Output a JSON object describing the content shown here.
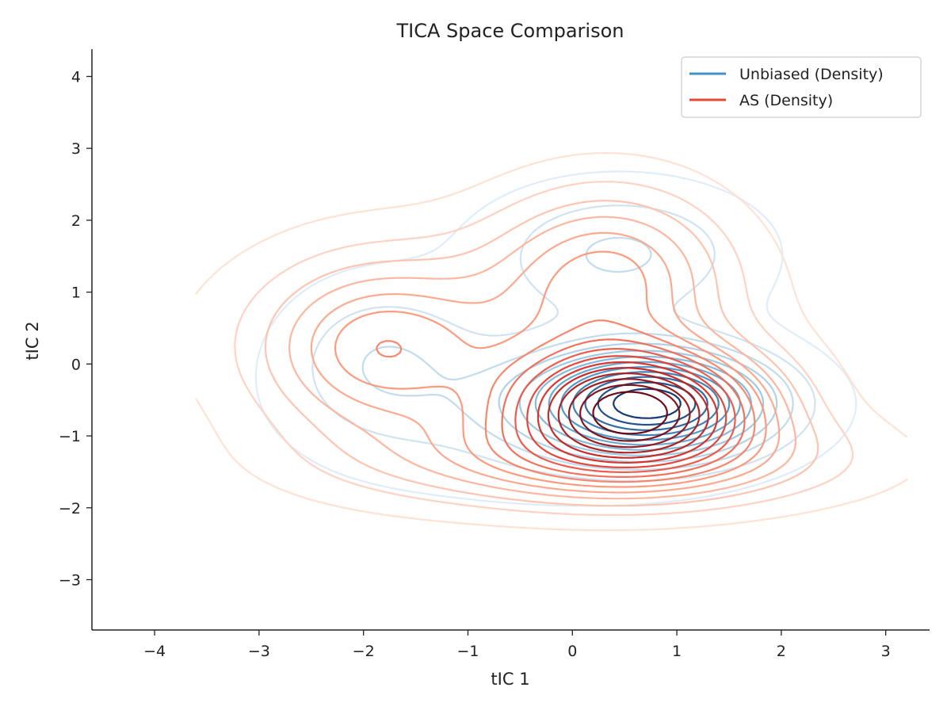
{
  "chart_data": {
    "type": "contour",
    "title": "TICA Space Comparison",
    "xlabel": "tIC 1",
    "ylabel": "tIC 2",
    "xlim": [
      -4.6,
      3.42
    ],
    "ylim": [
      -3.7,
      4.38
    ],
    "xticks": [
      -4,
      -3,
      -2,
      -1,
      0,
      1,
      2,
      3
    ],
    "yticks": [
      -3,
      -2,
      -1,
      0,
      1,
      2,
      3,
      4
    ],
    "xtick_labels": [
      "−4",
      "−3",
      "−2",
      "−1",
      "0",
      "1",
      "2",
      "3"
    ],
    "ytick_labels": [
      "−3",
      "−2",
      "−1",
      "0",
      "1",
      "2",
      "3",
      "4"
    ],
    "grid": false,
    "legend_position": "top-right",
    "series": [
      {
        "name": "Unbiased (Density)",
        "colormap": "Blues",
        "legend_color": "#4292c6",
        "levels": 12,
        "components": [
          {
            "weight": 1.0,
            "mx": 0.75,
            "my": -0.55,
            "sx": 0.75,
            "sy": 0.48
          },
          {
            "weight": 0.23,
            "mx": 0.45,
            "my": 1.55,
            "sx": 0.85,
            "sy": 0.62
          },
          {
            "weight": 0.17,
            "mx": -1.85,
            "my": 0.1,
            "sx": 0.6,
            "sy": 0.72
          },
          {
            "weight": 0.14,
            "mx": -0.4,
            "my": -0.6,
            "sx": 1.4,
            "sy": 0.85
          }
        ]
      },
      {
        "name": "AS (Density)",
        "colormap": "Reds",
        "legend_color": "#e34a33",
        "levels": 16,
        "components": [
          {
            "weight": 1.0,
            "mx": 0.6,
            "my": -0.6,
            "sx": 0.8,
            "sy": 0.55
          },
          {
            "weight": 0.35,
            "mx": 0.35,
            "my": 1.3,
            "sx": 0.75,
            "sy": 0.8
          },
          {
            "weight": 0.3,
            "mx": -1.9,
            "my": 0.2,
            "sx": 0.7,
            "sy": 0.8
          },
          {
            "weight": 0.35,
            "mx": 0.3,
            "my": -1.35,
            "sx": 1.5,
            "sy": 0.45
          },
          {
            "weight": 0.2,
            "mx": -0.9,
            "my": 0.3,
            "sx": 1.6,
            "sy": 1.0
          }
        ]
      }
    ]
  }
}
